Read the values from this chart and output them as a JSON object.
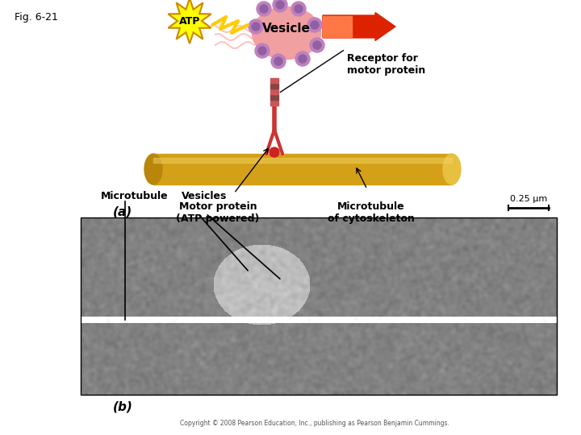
{
  "fig_label": "Fig. 6-21",
  "label_a": "(a)",
  "label_b": "(b)",
  "vesicle_text": "Vesicle",
  "atp_text": "ATP",
  "receptor_text": "Receptor for\nmotor protein",
  "motor_protein_text": "Motor protein\n(ATP powered)",
  "microtubule_text": "Microtubule\nof cytoskeleton",
  "microtubule_label": "Microtubule",
  "vesicles_label": "Vesicles",
  "scale_text": "0.25 μm",
  "copyright_text": "Copyright © 2008 Pearson Education, Inc., publishing as Pearson Benjamin Cummings.",
  "bg_color": "#ffffff",
  "atp_star_color": "#ffff00",
  "atp_star_border": "#cc8800",
  "vesicle_body_color": "#f0a0a0",
  "vesicle_blob_color": "#c080c0",
  "microtubule_color": "#d4a017",
  "motor_leg_color": "#cc4444",
  "receptor_connector_color": "#cc4444",
  "arrow_red_start": "#ff6600",
  "arrow_red_end": "#cc0000",
  "zigzag_color": "#ffcc00",
  "scale_bar_color": "#000000"
}
